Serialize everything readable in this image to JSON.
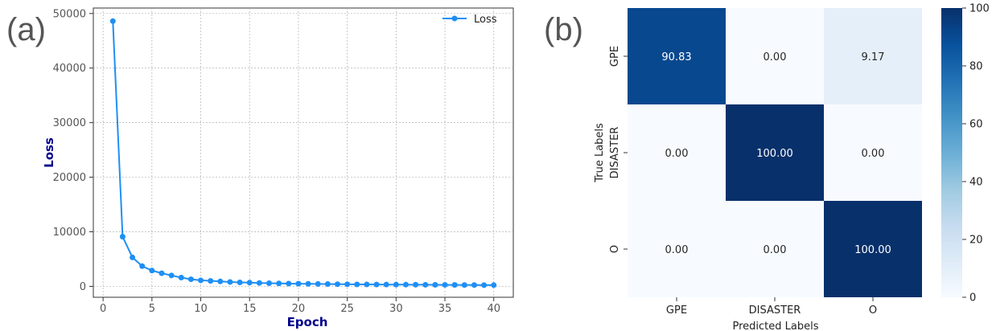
{
  "panel_labels": {
    "a": "(a)",
    "b": "(b)"
  },
  "chart_data": [
    {
      "type": "line",
      "title": "",
      "xlabel": "Epoch",
      "ylabel": "Loss",
      "xlim": [
        -1,
        42
      ],
      "ylim": [
        -2000,
        51000
      ],
      "xticks": [
        0,
        5,
        10,
        15,
        20,
        25,
        30,
        35,
        40
      ],
      "yticks": [
        0,
        10000,
        20000,
        30000,
        40000,
        50000
      ],
      "grid": true,
      "legend": "top-right",
      "series": [
        {
          "name": "Loss",
          "color": "#1e8ff5",
          "marker": "circle",
          "x": [
            1,
            2,
            3,
            4,
            5,
            6,
            7,
            8,
            9,
            10,
            11,
            12,
            13,
            14,
            15,
            16,
            17,
            18,
            19,
            20,
            21,
            22,
            23,
            24,
            25,
            26,
            27,
            28,
            29,
            30,
            31,
            32,
            33,
            34,
            35,
            36,
            37,
            38,
            39,
            40
          ],
          "y": [
            48600,
            9100,
            5300,
            3700,
            2900,
            2400,
            2000,
            1600,
            1300,
            1100,
            1000,
            900,
            800,
            720,
            680,
            620,
            580,
            540,
            510,
            480,
            460,
            440,
            420,
            400,
            380,
            360,
            350,
            340,
            330,
            320,
            310,
            300,
            290,
            280,
            270,
            260,
            250,
            240,
            230,
            220
          ]
        }
      ]
    },
    {
      "type": "heatmap",
      "title": "",
      "xlabel": "Predicted Labels",
      "ylabel": "True Labels",
      "x_categories": [
        "GPE",
        "DISASTER",
        "O"
      ],
      "y_categories": [
        "GPE",
        "DISASTER",
        "O"
      ],
      "values": [
        [
          90.83,
          0.0,
          9.17
        ],
        [
          0.0,
          100.0,
          0.0
        ],
        [
          0.0,
          0.0,
          100.0
        ]
      ],
      "colormap": "Blues",
      "vmin": 0,
      "vmax": 100,
      "colorbar_ticks": [
        0,
        20,
        40,
        60,
        80,
        100
      ]
    }
  ]
}
